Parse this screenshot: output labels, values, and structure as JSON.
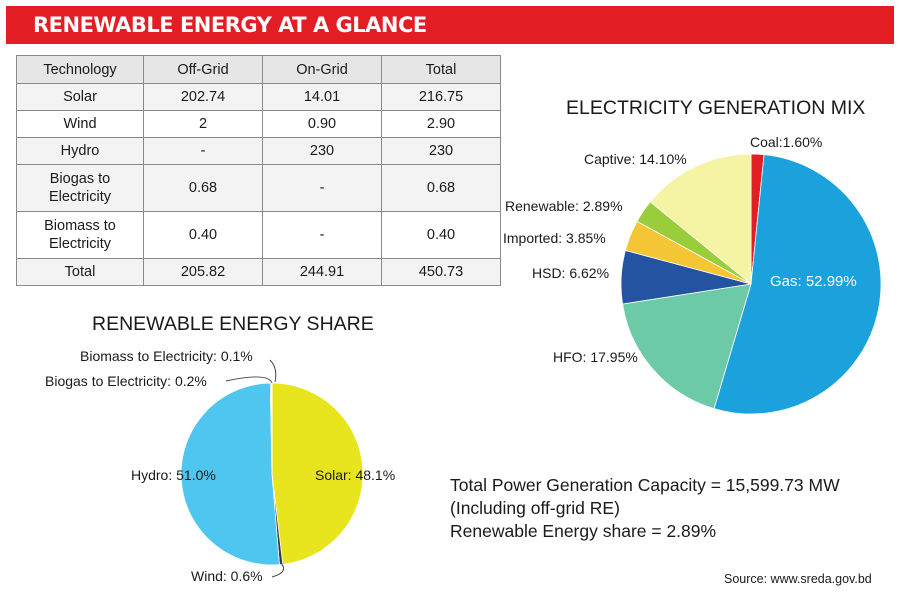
{
  "banner": {
    "title": "RENEWABLE ENERGY AT A GLANCE"
  },
  "table": {
    "headers": [
      "Technology",
      "Off-Grid",
      "On-Grid",
      "Total"
    ],
    "rows": [
      [
        "Solar",
        "202.74",
        "14.01",
        "216.75"
      ],
      [
        "Wind",
        "2",
        "0.90",
        "2.90"
      ],
      [
        "Hydro",
        "-",
        "230",
        "230"
      ],
      [
        "Biogas to\nElectricity",
        "0.68",
        "-",
        "0.68"
      ],
      [
        "Biomass to\nElectricity",
        "0.40",
        "-",
        "0.40"
      ],
      [
        "Total",
        "205.82",
        "244.91",
        "450.73"
      ]
    ]
  },
  "summary": {
    "line1": "Total Power Generation Capacity = 15,599.73 MW",
    "line2": "(Including off-grid RE)",
    "line3": "Renewable Energy share = 2.89%"
  },
  "source": "Source: www.sreda.gov.bd",
  "chart_data": [
    {
      "type": "pie",
      "title": "ELECTRICITY GENERATION MIX",
      "slices": [
        {
          "label": "Coal:1.60%",
          "value": 1.6,
          "color": "#e31d24"
        },
        {
          "label": "Gas: 52.99%",
          "value": 52.99,
          "color": "#1ba1dc"
        },
        {
          "label": "HFO: 17.95%",
          "value": 17.95,
          "color": "#6dcaa6"
        },
        {
          "label": "HSD: 6.62%",
          "value": 6.62,
          "color": "#2453a2"
        },
        {
          "label": "Imported: 3.85%",
          "value": 3.85,
          "color": "#f4c534"
        },
        {
          "label": "Renewable: 2.89%",
          "value": 2.89,
          "color": "#9acd3b"
        },
        {
          "label": "Captive: 14.10%",
          "value": 14.1,
          "color": "#f5f3a4"
        }
      ]
    },
    {
      "type": "pie",
      "title": "RENEWABLE ENERGY SHARE",
      "slices": [
        {
          "label": "Solar: 48.1%",
          "value": 48.1,
          "color": "#e8e41e"
        },
        {
          "label": "Wind: 0.6%",
          "value": 0.6,
          "color": "#3a3a3a"
        },
        {
          "label": "Hydro: 51.0%",
          "value": 51.0,
          "color": "#4fc6ef"
        },
        {
          "label": "Biogas to Electricity: 0.2%",
          "value": 0.2,
          "color": "#7a7a7a"
        },
        {
          "label": "Biomass to Electricity: 0.1%",
          "value": 0.1,
          "color": "#5a5a5a"
        }
      ]
    }
  ]
}
